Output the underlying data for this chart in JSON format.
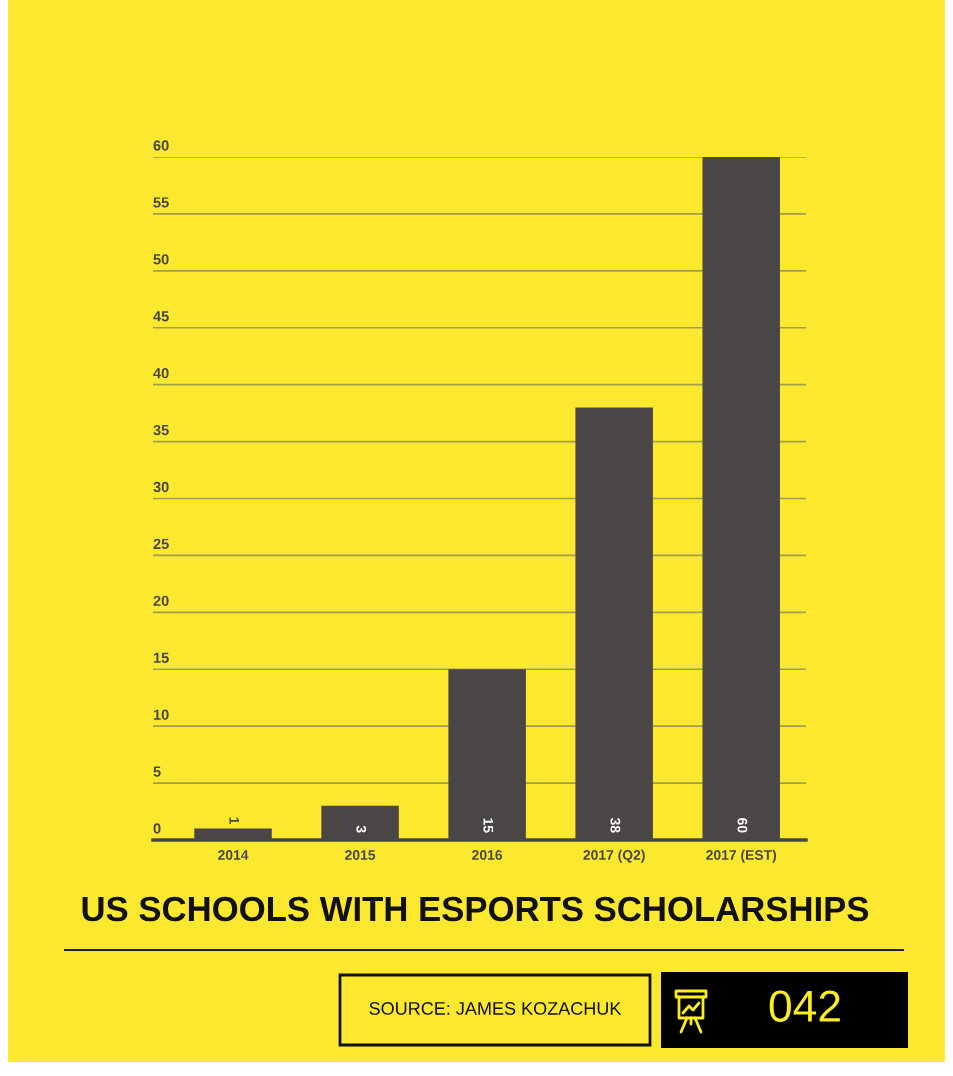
{
  "chart_data": {
    "type": "bar",
    "title": "US SCHOOLS WITH ESPORTS SCHOLARSHIPS",
    "categories": [
      "2014",
      "2015",
      "2016",
      "2017 (Q2)",
      "2017 (EST)"
    ],
    "values": [
      1,
      3,
      15,
      38,
      60
    ],
    "color": "#4a4646",
    "ylim": [
      0,
      60
    ],
    "yticks": [
      0,
      5,
      10,
      15,
      20,
      25,
      30,
      35,
      40,
      45,
      50,
      55,
      60
    ],
    "grid": "y",
    "data_labels": true,
    "annotations": [
      "SOURCE: JAMES KOZACHUK",
      "042"
    ]
  }
}
